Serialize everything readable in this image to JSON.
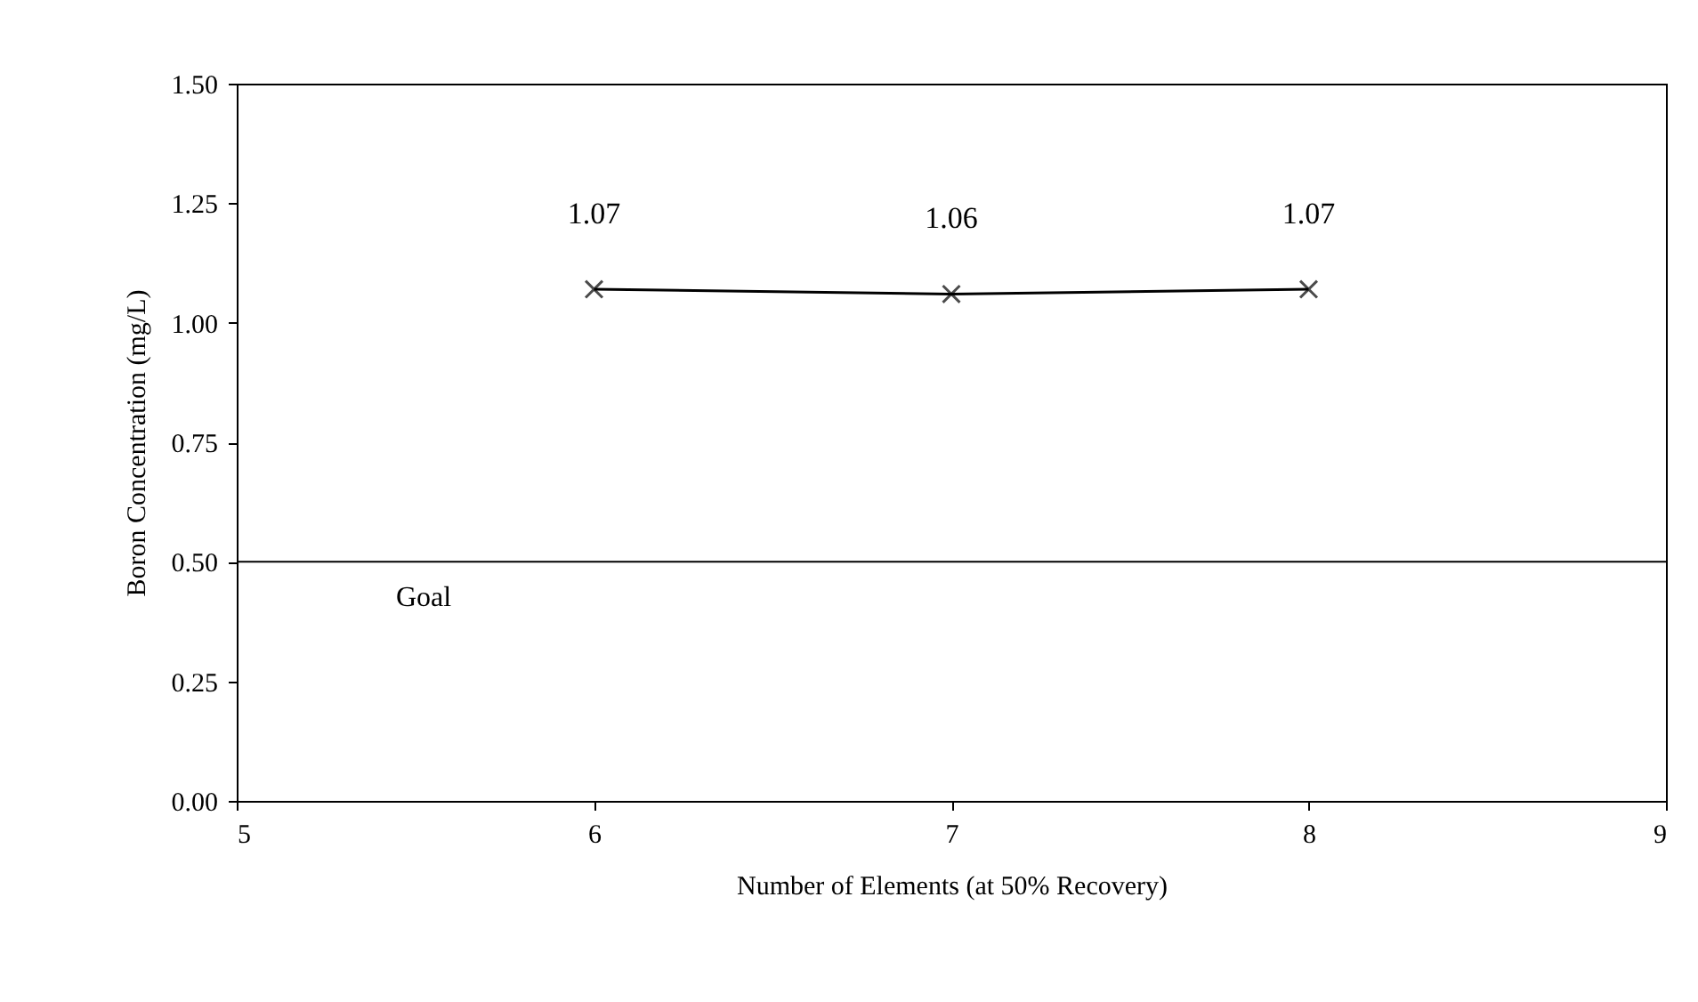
{
  "chart_data": {
    "type": "line",
    "xlabel": "Number of Elements (at 50% Recovery)",
    "ylabel": "Boron Concentration (mg/L)",
    "x": [
      6,
      7,
      8
    ],
    "series": [
      {
        "color": "#000000",
        "values": [
          1.07,
          1.06,
          1.07
        ]
      }
    ],
    "xlim": [
      5,
      9
    ],
    "xticks": [
      5,
      6,
      7,
      8,
      9
    ],
    "ylim": [
      0,
      1.5
    ],
    "yticks": [
      {
        "value": 0,
        "label": "0.00"
      },
      {
        "value": 0.25,
        "label": "0.25"
      },
      {
        "value": 0.5,
        "label": "0.50"
      },
      {
        "value": 0.75,
        "label": "0.75"
      },
      {
        "value": 1,
        "label": "1.00"
      },
      {
        "value": 1.25,
        "label": "1.25"
      },
      {
        "value": 1.5,
        "label": "1.50"
      }
    ],
    "ref_lines": [
      {
        "axis": "y",
        "value": 0.5,
        "label": "Goal",
        "color": "#000000"
      }
    ],
    "data_labels": true,
    "marker": "cross",
    "line_style": "solid",
    "grid": false
  }
}
